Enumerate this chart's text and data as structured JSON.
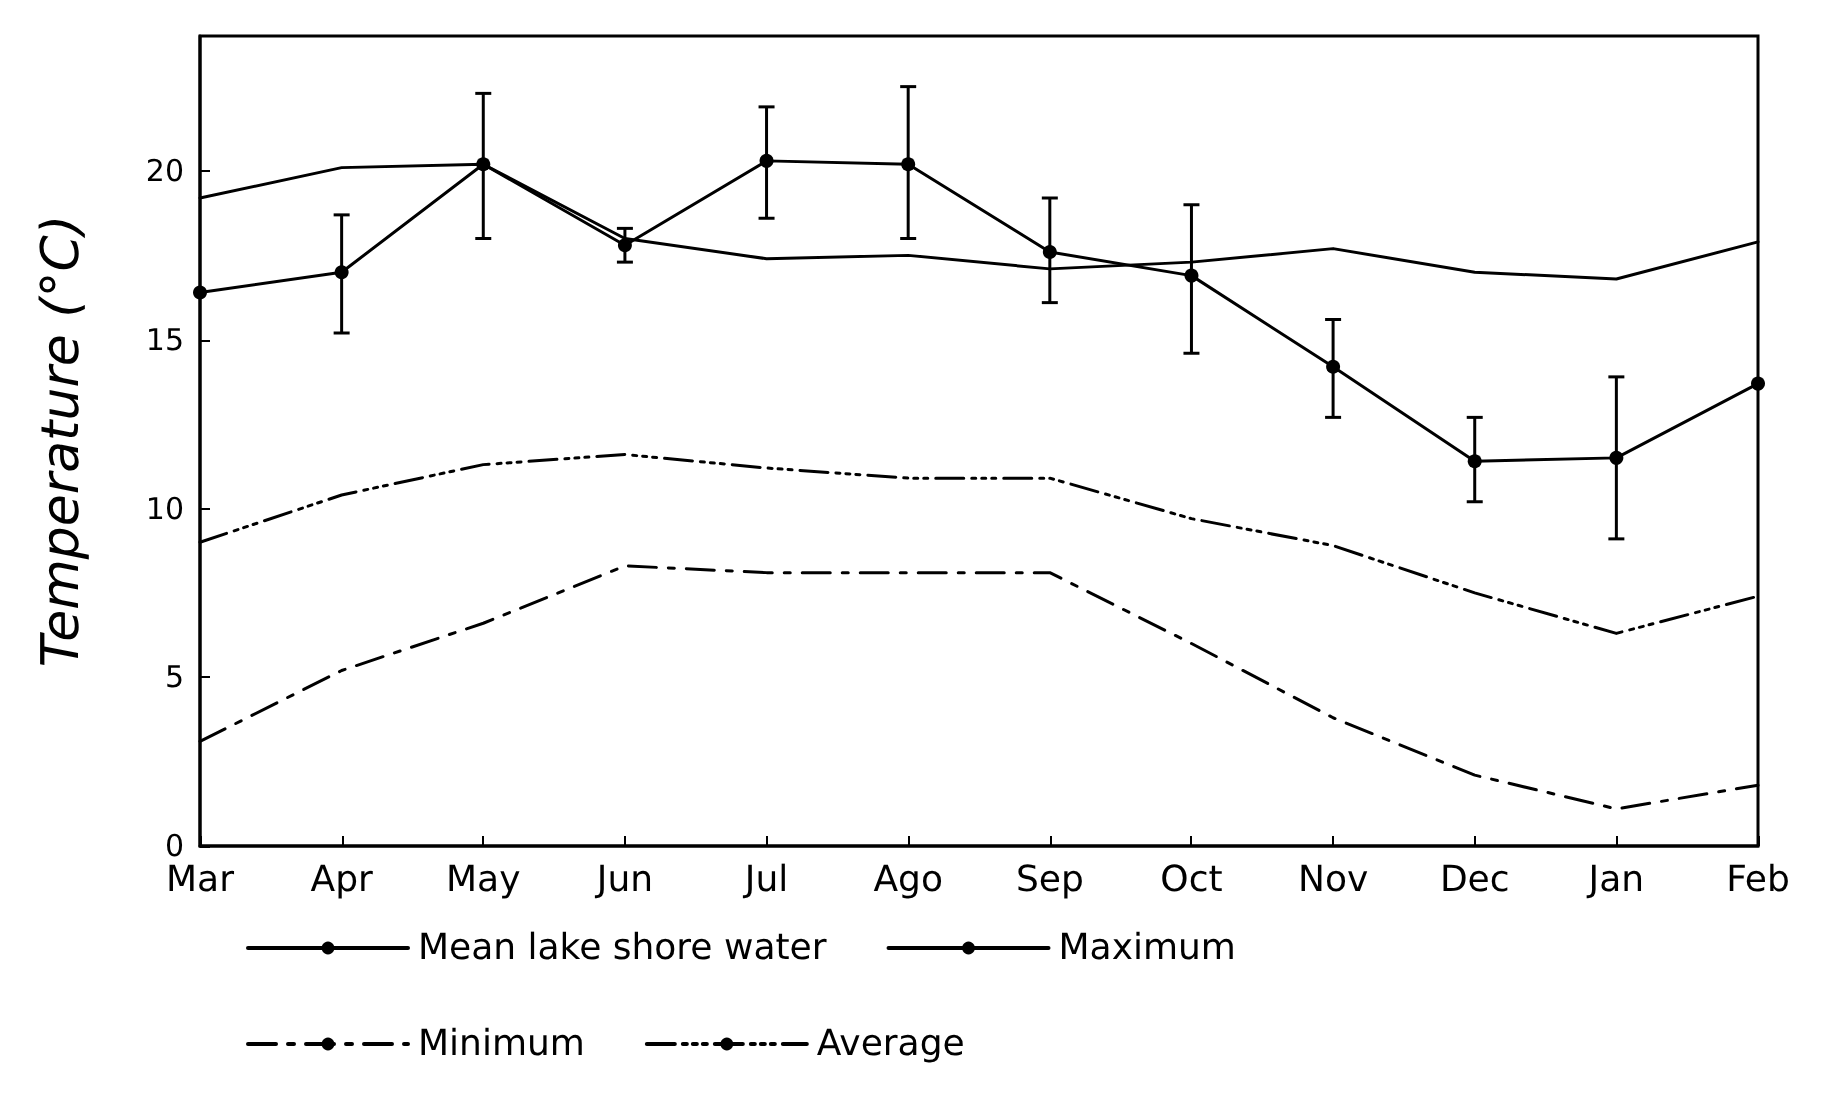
{
  "chart_data": {
    "type": "line",
    "ylabel": "Temperature (°C)",
    "categories": [
      "Mar",
      "Apr",
      "May",
      "Jun",
      "Jul",
      "Ago",
      "Sep",
      "Oct",
      "Nov",
      "Dec",
      "Jan",
      "Feb"
    ],
    "series": [
      {
        "name": "Mean lake shore water",
        "color": "#000000",
        "marker": "circle",
        "line_style": "solid",
        "values": [
          16.4,
          17.0,
          20.2,
          17.8,
          20.3,
          20.2,
          17.6,
          16.9,
          14.2,
          11.4,
          11.5,
          13.7
        ],
        "errors": [
          null,
          [
            15.2,
            18.7
          ],
          [
            18.0,
            22.3
          ],
          [
            17.3,
            18.3
          ],
          [
            18.6,
            21.9
          ],
          [
            18.0,
            22.5
          ],
          [
            16.1,
            19.2
          ],
          [
            14.6,
            19.0
          ],
          [
            12.7,
            15.6
          ],
          [
            10.2,
            12.7
          ],
          [
            9.1,
            13.9
          ],
          null
        ]
      },
      {
        "name": "Maximum",
        "color": "#000000",
        "marker": "none",
        "line_style": "solid",
        "values": [
          19.2,
          20.1,
          20.2,
          18.0,
          17.4,
          17.5,
          17.1,
          17.3,
          17.7,
          17.0,
          16.8,
          17.9
        ]
      },
      {
        "name": "Minimum",
        "color": "#000000",
        "marker": "none",
        "line_style": "dashed",
        "values": [
          3.1,
          5.2,
          6.6,
          8.3,
          8.1,
          8.1,
          8.1,
          6.0,
          3.8,
          2.1,
          1.1,
          1.8
        ]
      },
      {
        "name": "Average",
        "color": "#000000",
        "marker": "none",
        "line_style": "dotted",
        "values": [
          9.0,
          10.4,
          11.3,
          11.6,
          11.2,
          10.9,
          10.9,
          9.7,
          8.9,
          7.5,
          6.3,
          7.4
        ]
      }
    ],
    "ylim": [
      0,
      24
    ],
    "yticks": [
      0,
      5,
      10,
      15,
      20
    ],
    "grid": false,
    "legend": "bottom"
  }
}
